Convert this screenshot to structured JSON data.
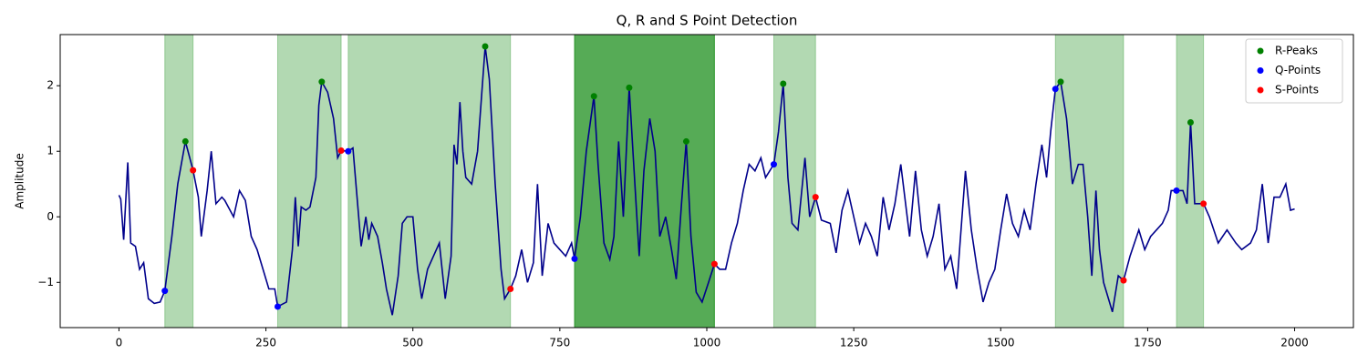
{
  "chart_data": {
    "type": "line",
    "title": "Q, R and S Point Detection",
    "y_label": "Amplitude",
    "x": [
      0,
      3,
      8,
      15,
      20,
      28,
      35,
      42,
      50,
      60,
      70,
      78,
      90,
      100,
      113,
      126,
      135,
      140,
      150,
      157,
      165,
      175,
      180,
      195,
      205,
      215,
      225,
      235,
      245,
      255,
      265,
      270,
      285,
      295,
      300,
      305,
      310,
      318,
      325,
      335,
      340,
      345,
      355,
      365,
      372,
      378,
      390,
      398,
      405,
      412,
      420,
      425,
      430,
      440,
      448,
      455,
      465,
      475,
      482,
      490,
      500,
      508,
      515,
      525,
      535,
      545,
      555,
      565,
      570,
      575,
      580,
      585,
      590,
      600,
      610,
      623,
      630,
      640,
      650,
      656,
      666,
      675,
      685,
      695,
      705,
      712,
      720,
      730,
      740,
      750,
      760,
      770,
      775,
      785,
      795,
      808,
      815,
      825,
      835,
      842,
      850,
      858,
      868,
      875,
      885,
      893,
      903,
      912,
      920,
      930,
      940,
      948,
      957,
      965,
      973,
      982,
      992,
      1003,
      1013,
      1022,
      1032,
      1042,
      1052,
      1062,
      1072,
      1082,
      1092,
      1100,
      1114,
      1122,
      1130,
      1138,
      1145,
      1155,
      1167,
      1175,
      1185,
      1195,
      1210,
      1220,
      1230,
      1240,
      1250,
      1260,
      1270,
      1280,
      1290,
      1300,
      1310,
      1320,
      1330,
      1345,
      1355,
      1365,
      1375,
      1385,
      1395,
      1405,
      1415,
      1425,
      1430,
      1440,
      1450,
      1460,
      1470,
      1480,
      1490,
      1500,
      1510,
      1520,
      1530,
      1540,
      1550,
      1560,
      1570,
      1578,
      1585,
      1593,
      1602,
      1612,
      1622,
      1632,
      1640,
      1648,
      1655,
      1662,
      1668,
      1675,
      1685,
      1690,
      1700,
      1709,
      1720,
      1735,
      1745,
      1755,
      1765,
      1775,
      1785,
      1790,
      1799,
      1810,
      1817,
      1823,
      1830,
      1845,
      1855,
      1870,
      1885,
      1900,
      1910,
      1925,
      1935,
      1945,
      1955,
      1965,
      1975,
      1985,
      1993,
      2000
    ],
    "values": [
      0.33,
      0.27,
      -0.35,
      0.83,
      -0.4,
      -0.45,
      -0.8,
      -0.7,
      -1.25,
      -1.32,
      -1.3,
      -1.13,
      -0.3,
      0.5,
      1.15,
      0.71,
      0.3,
      -0.3,
      0.4,
      1.0,
      0.2,
      0.3,
      0.25,
      0.0,
      0.4,
      0.25,
      -0.3,
      -0.5,
      -0.8,
      -1.1,
      -1.1,
      -1.37,
      -1.3,
      -0.5,
      0.3,
      -0.45,
      0.15,
      0.1,
      0.15,
      0.6,
      1.7,
      2.06,
      1.9,
      1.5,
      0.9,
      1.01,
      1.0,
      1.05,
      0.3,
      -0.45,
      0.0,
      -0.35,
      -0.1,
      -0.3,
      -0.7,
      -1.1,
      -1.5,
      -0.9,
      -0.1,
      0.0,
      0.0,
      -0.8,
      -1.25,
      -0.8,
      -0.6,
      -0.4,
      -1.25,
      -0.6,
      1.1,
      0.8,
      1.75,
      1.0,
      0.6,
      0.5,
      1.0,
      2.6,
      2.1,
      0.5,
      -0.8,
      -1.25,
      -1.1,
      -0.9,
      -0.5,
      -1.0,
      -0.7,
      0.5,
      -0.9,
      -0.1,
      -0.4,
      -0.5,
      -0.6,
      -0.4,
      -0.64,
      0.0,
      1.0,
      1.84,
      0.8,
      -0.4,
      -0.65,
      -0.3,
      1.15,
      0.0,
      1.97,
      0.9,
      -0.6,
      0.7,
      1.5,
      1.0,
      -0.3,
      0.0,
      -0.5,
      -0.95,
      0.2,
      1.15,
      -0.3,
      -1.15,
      -1.3,
      -1.0,
      -0.72,
      -0.8,
      -0.8,
      -0.4,
      -0.1,
      0.4,
      0.8,
      0.7,
      0.9,
      0.6,
      0.8,
      1.3,
      2.03,
      0.6,
      -0.1,
      -0.2,
      0.9,
      0.0,
      0.3,
      -0.05,
      -0.1,
      -0.55,
      0.1,
      0.4,
      0.0,
      -0.4,
      -0.1,
      -0.3,
      -0.6,
      0.3,
      -0.2,
      0.2,
      0.8,
      -0.3,
      0.7,
      -0.2,
      -0.6,
      -0.3,
      0.2,
      -0.8,
      -0.6,
      -1.1,
      -0.5,
      0.7,
      -0.2,
      -0.8,
      -1.3,
      -1.0,
      -0.8,
      -0.2,
      0.35,
      -0.1,
      -0.3,
      0.1,
      -0.2,
      0.5,
      1.1,
      0.6,
      1.3,
      1.95,
      2.06,
      1.5,
      0.5,
      0.8,
      0.8,
      0.0,
      -0.9,
      0.4,
      -0.5,
      -1.0,
      -1.3,
      -1.45,
      -0.9,
      -0.97,
      -0.6,
      -0.2,
      -0.5,
      -0.3,
      -0.2,
      -0.1,
      0.1,
      0.4,
      0.4,
      0.4,
      0.2,
      1.44,
      0.2,
      0.2,
      0.0,
      -0.4,
      -0.2,
      -0.4,
      -0.5,
      -0.4,
      -0.2,
      0.5,
      -0.4,
      0.3,
      0.3,
      0.5,
      0.1,
      0.12
    ],
    "color": "#00008b",
    "markers": [
      {
        "name": "R-Peaks",
        "color": "#008000",
        "x": [
          113,
          345,
          623,
          808,
          868,
          965,
          1130,
          1602,
          1823
        ],
        "values": [
          1.15,
          2.06,
          2.6,
          1.84,
          1.97,
          1.15,
          2.03,
          2.06,
          1.44
        ]
      },
      {
        "name": "Q-Points",
        "color": "#0000ff",
        "x": [
          78,
          270,
          390,
          775,
          1114,
          1593,
          1799
        ],
        "values": [
          -1.13,
          -1.37,
          1.0,
          -0.64,
          0.8,
          1.95,
          0.4
        ]
      },
      {
        "name": "S-Points",
        "color": "#ff0000",
        "x": [
          126,
          378,
          666,
          1013,
          1185,
          1709,
          1845
        ],
        "values": [
          0.71,
          1.01,
          -1.1,
          -0.72,
          0.3,
          -0.97,
          0.2
        ]
      }
    ],
    "spans": [
      [
        78,
        126
      ],
      [
        270,
        378
      ],
      [
        390,
        666
      ],
      [
        775,
        1013
      ],
      [
        775,
        1013
      ],
      [
        775,
        1013
      ],
      [
        1114,
        1185
      ],
      [
        1593,
        1709
      ],
      [
        1799,
        1845
      ]
    ],
    "span_color": "#008000",
    "xlim": [
      -100,
      2100
    ],
    "ylim": [
      -1.69,
      2.78
    ],
    "xticks": [
      0,
      250,
      500,
      750,
      1000,
      1250,
      1500,
      1750,
      2000
    ],
    "yticks": [
      {
        "value": -1,
        "label": "−1"
      },
      0,
      1,
      2
    ],
    "legend": "upper right",
    "grid": false
  }
}
